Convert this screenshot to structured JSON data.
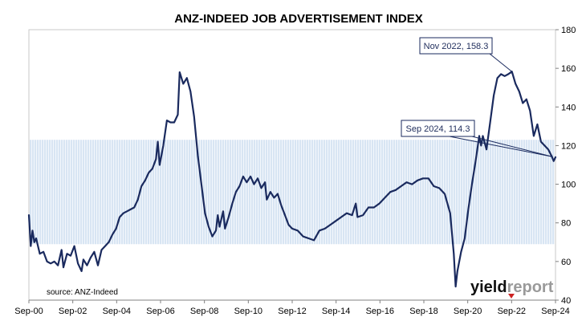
{
  "chart_data": {
    "type": "line",
    "title": "ANZ-INDEED JOB ADVERTISEMENT INDEX",
    "source_note": "source: ANZ-Indeed",
    "logo": {
      "part1": "yield",
      "part2": "report"
    },
    "x_ticks": [
      "Sep-00",
      "Sep-02",
      "Sep-04",
      "Sep-06",
      "Sep-08",
      "Sep-10",
      "Sep-12",
      "Sep-14",
      "Sep-16",
      "Sep-18",
      "Sep-20",
      "Sep-22",
      "Sep-24"
    ],
    "y_ticks": [
      40,
      60,
      80,
      100,
      120,
      140,
      160,
      180
    ],
    "ylim": [
      40,
      180
    ],
    "xlim": [
      "2000-09",
      "2024-11"
    ],
    "grid": false,
    "shaded_band": {
      "from": 69,
      "to": 123,
      "color": "#bcd3ea"
    },
    "line_color": "#1a2a5e",
    "annotations": [
      {
        "label": "Nov 2022, 158.3",
        "x": "2022-11",
        "y": 158.3
      },
      {
        "label": "Sep 2024, 114.3",
        "x": "2024-09",
        "y": 114.3
      }
    ],
    "series": [
      {
        "points": [
          [
            "2000-09",
            84
          ],
          [
            "2000-10",
            68
          ],
          [
            "2000-11",
            76
          ],
          [
            "2000-12",
            70
          ],
          [
            "2001-01",
            72
          ],
          [
            "2001-03",
            64
          ],
          [
            "2001-05",
            65
          ],
          [
            "2001-07",
            60
          ],
          [
            "2001-09",
            59
          ],
          [
            "2001-11",
            60
          ],
          [
            "2002-01",
            58
          ],
          [
            "2002-03",
            66
          ],
          [
            "2002-04",
            57
          ],
          [
            "2002-06",
            64
          ],
          [
            "2002-08",
            63
          ],
          [
            "2002-10",
            68
          ],
          [
            "2002-12",
            59
          ],
          [
            "2003-02",
            55
          ],
          [
            "2003-03",
            61
          ],
          [
            "2003-05",
            58
          ],
          [
            "2003-07",
            62
          ],
          [
            "2003-09",
            65
          ],
          [
            "2003-11",
            58
          ],
          [
            "2004-01",
            66
          ],
          [
            "2004-03",
            68
          ],
          [
            "2004-05",
            70
          ],
          [
            "2004-07",
            74
          ],
          [
            "2004-09",
            77
          ],
          [
            "2004-11",
            83
          ],
          [
            "2005-01",
            85
          ],
          [
            "2005-03",
            86
          ],
          [
            "2005-05",
            87
          ],
          [
            "2005-07",
            88
          ],
          [
            "2005-09",
            92
          ],
          [
            "2005-11",
            99
          ],
          [
            "2006-01",
            102
          ],
          [
            "2006-03",
            106
          ],
          [
            "2006-05",
            108
          ],
          [
            "2006-07",
            113
          ],
          [
            "2006-08",
            122
          ],
          [
            "2006-09",
            110
          ],
          [
            "2006-11",
            120
          ],
          [
            "2007-01",
            133
          ],
          [
            "2007-03",
            132
          ],
          [
            "2007-05",
            132
          ],
          [
            "2007-07",
            136
          ],
          [
            "2007-08",
            158
          ],
          [
            "2007-10",
            152
          ],
          [
            "2007-12",
            155
          ],
          [
            "2008-02",
            148
          ],
          [
            "2008-04",
            135
          ],
          [
            "2008-06",
            115
          ],
          [
            "2008-08",
            100
          ],
          [
            "2008-10",
            85
          ],
          [
            "2008-12",
            78
          ],
          [
            "2009-02",
            73
          ],
          [
            "2009-04",
            76
          ],
          [
            "2009-05",
            84
          ],
          [
            "2009-06",
            78
          ],
          [
            "2009-08",
            86
          ],
          [
            "2009-09",
            77
          ],
          [
            "2009-11",
            83
          ],
          [
            "2010-01",
            90
          ],
          [
            "2010-03",
            96
          ],
          [
            "2010-05",
            99
          ],
          [
            "2010-07",
            104
          ],
          [
            "2010-09",
            101
          ],
          [
            "2010-11",
            104
          ],
          [
            "2011-01",
            100
          ],
          [
            "2011-03",
            103
          ],
          [
            "2011-05",
            98
          ],
          [
            "2011-07",
            101
          ],
          [
            "2011-08",
            92
          ],
          [
            "2011-10",
            96
          ],
          [
            "2011-12",
            93
          ],
          [
            "2012-02",
            95
          ],
          [
            "2012-04",
            89
          ],
          [
            "2012-06",
            84
          ],
          [
            "2012-08",
            79
          ],
          [
            "2012-10",
            77
          ],
          [
            "2013-01",
            76
          ],
          [
            "2013-04",
            73
          ],
          [
            "2013-07",
            72
          ],
          [
            "2013-10",
            71
          ],
          [
            "2014-01",
            76
          ],
          [
            "2014-04",
            77
          ],
          [
            "2014-07",
            79
          ],
          [
            "2014-10",
            81
          ],
          [
            "2015-01",
            83
          ],
          [
            "2015-04",
            85
          ],
          [
            "2015-07",
            84
          ],
          [
            "2015-09",
            90
          ],
          [
            "2015-10",
            83
          ],
          [
            "2016-01",
            84
          ],
          [
            "2016-04",
            88
          ],
          [
            "2016-07",
            88
          ],
          [
            "2016-10",
            90
          ],
          [
            "2017-01",
            93
          ],
          [
            "2017-04",
            96
          ],
          [
            "2017-07",
            97
          ],
          [
            "2017-10",
            99
          ],
          [
            "2018-01",
            101
          ],
          [
            "2018-04",
            100
          ],
          [
            "2018-07",
            102
          ],
          [
            "2018-10",
            103
          ],
          [
            "2019-01",
            103
          ],
          [
            "2019-04",
            99
          ],
          [
            "2019-07",
            98
          ],
          [
            "2019-10",
            95
          ],
          [
            "2020-01",
            85
          ],
          [
            "2020-03",
            64
          ],
          [
            "2020-04",
            47
          ],
          [
            "2020-05",
            55
          ],
          [
            "2020-07",
            65
          ],
          [
            "2020-09",
            72
          ],
          [
            "2020-11",
            87
          ],
          [
            "2021-01",
            100
          ],
          [
            "2021-03",
            112
          ],
          [
            "2021-05",
            125
          ],
          [
            "2021-06",
            120
          ],
          [
            "2021-07",
            125
          ],
          [
            "2021-09",
            118
          ],
          [
            "2021-11",
            132
          ],
          [
            "2022-01",
            146
          ],
          [
            "2022-03",
            155
          ],
          [
            "2022-05",
            157
          ],
          [
            "2022-07",
            156
          ],
          [
            "2022-09",
            157
          ],
          [
            "2022-11",
            158.3
          ],
          [
            "2023-01",
            152
          ],
          [
            "2023-03",
            148
          ],
          [
            "2023-05",
            142
          ],
          [
            "2023-07",
            144
          ],
          [
            "2023-09",
            138
          ],
          [
            "2023-11",
            125
          ],
          [
            "2024-01",
            131
          ],
          [
            "2024-03",
            122
          ],
          [
            "2024-05",
            120
          ],
          [
            "2024-07",
            118
          ],
          [
            "2024-09",
            114.3
          ],
          [
            "2024-10",
            112
          ],
          [
            "2024-11",
            114
          ]
        ]
      }
    ]
  }
}
